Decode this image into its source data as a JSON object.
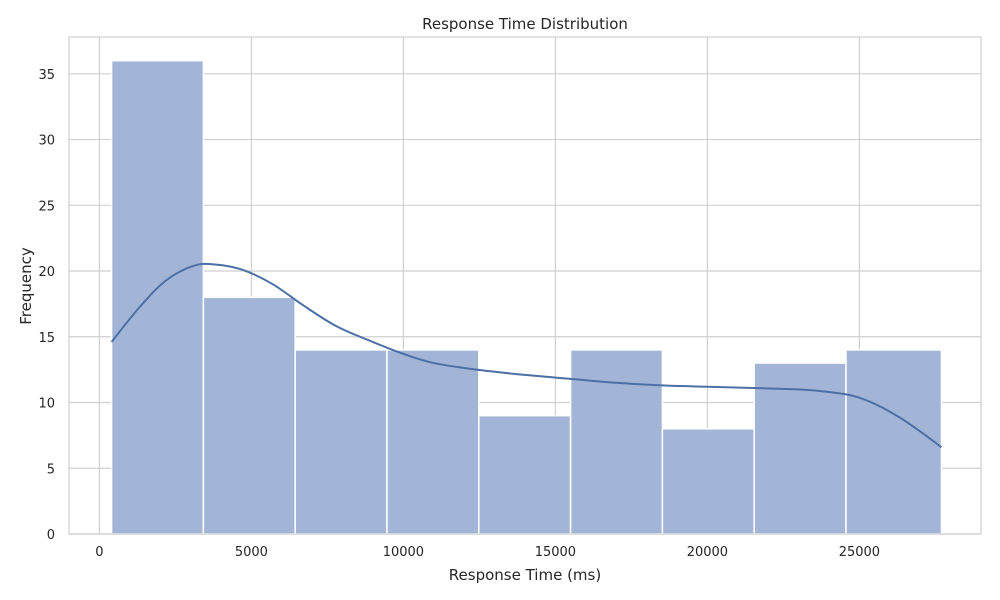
{
  "chart_data": {
    "type": "bar",
    "subtype": "histogram-with-kde",
    "title": "Response Time Distribution",
    "xlabel": "Response Time (ms)",
    "ylabel": "Frequency",
    "xlim": [
      -1000,
      29000
    ],
    "ylim": [
      0,
      37.8
    ],
    "x_ticks": [
      0,
      5000,
      10000,
      15000,
      20000,
      25000
    ],
    "y_ticks": [
      0,
      5,
      10,
      15,
      20,
      25,
      30,
      35
    ],
    "grid": true,
    "bins": [
      {
        "start": 400,
        "end": 3420,
        "count": 36
      },
      {
        "start": 3420,
        "end": 6440,
        "count": 18
      },
      {
        "start": 6440,
        "end": 9460,
        "count": 14
      },
      {
        "start": 9460,
        "end": 12480,
        "count": 14
      },
      {
        "start": 12480,
        "end": 15500,
        "count": 9
      },
      {
        "start": 15500,
        "end": 18520,
        "count": 14
      },
      {
        "start": 18520,
        "end": 21540,
        "count": 8
      },
      {
        "start": 21540,
        "end": 24560,
        "count": 13
      },
      {
        "start": 24560,
        "end": 27700,
        "count": 14
      }
    ],
    "kde": {
      "x": [
        400,
        1300,
        2200,
        3100,
        3800,
        4700,
        5700,
        6700,
        7800,
        9000,
        10000,
        11000,
        12400,
        14000,
        15500,
        17000,
        18500,
        20000,
        21500,
        23000,
        24000,
        24800,
        25500,
        26300,
        27000,
        27700
      ],
      "y": [
        14.6,
        17.2,
        19.3,
        20.4,
        20.5,
        20.1,
        19.0,
        17.4,
        15.8,
        14.6,
        13.7,
        13.0,
        12.5,
        12.1,
        11.8,
        11.5,
        11.3,
        11.2,
        11.1,
        11.0,
        10.8,
        10.5,
        9.9,
        8.9,
        7.8,
        6.6
      ]
    },
    "colors": {
      "bar": "#a3b5d6",
      "line": "#4c6fa5",
      "grid": "#cfcfd4"
    }
  }
}
